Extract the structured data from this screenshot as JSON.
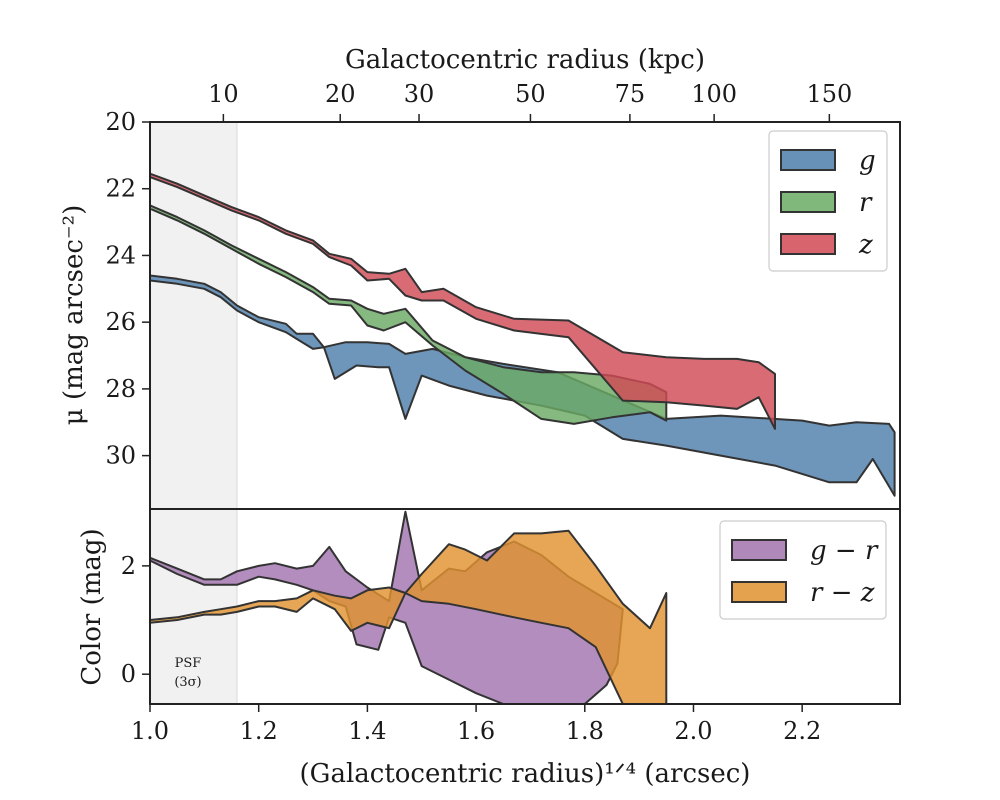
{
  "chart_data": [
    {
      "type": "area",
      "panel": "surface-brightness",
      "top_axis": {
        "label": "Galactocentric radius (kpc)",
        "ticks": [
          {
            "kpc": 10,
            "label": "10"
          },
          {
            "kpc": 20,
            "label": "20"
          },
          {
            "kpc": 30,
            "label": "30"
          },
          {
            "kpc": 50,
            "label": "50"
          },
          {
            "kpc": 75,
            "label": "75"
          },
          {
            "kpc": 100,
            "label": "100"
          },
          {
            "kpc": 150,
            "label": "150"
          }
        ]
      },
      "ylabel": "μ (mag arcsec⁻²)",
      "ylim": [
        31.6,
        20.0
      ],
      "y_inverted": true,
      "xlim": [
        1.0,
        2.38
      ],
      "yticks": [
        "20",
        "22",
        "24",
        "26",
        "28",
        "30"
      ],
      "legend": {
        "position": "top-right"
      },
      "psf_shade": {
        "x_max": 1.16
      },
      "series": [
        {
          "name": "g",
          "color": "#4e7eab",
          "upper": [
            [
              1.0,
              24.6
            ],
            [
              1.05,
              24.7
            ],
            [
              1.1,
              24.85
            ],
            [
              1.13,
              25.1
            ],
            [
              1.16,
              25.5
            ],
            [
              1.2,
              25.85
            ],
            [
              1.25,
              26.05
            ],
            [
              1.27,
              26.35
            ],
            [
              1.3,
              26.35
            ],
            [
              1.32,
              26.75
            ],
            [
              1.36,
              26.6
            ],
            [
              1.4,
              26.6
            ],
            [
              1.44,
              26.65
            ],
            [
              1.47,
              26.95
            ],
            [
              1.52,
              26.8
            ],
            [
              1.58,
              27.05
            ],
            [
              1.65,
              27.25
            ],
            [
              1.75,
              27.5
            ],
            [
              1.85,
              28.2
            ],
            [
              1.95,
              28.9
            ],
            [
              2.05,
              28.8
            ],
            [
              2.2,
              28.95
            ],
            [
              2.25,
              29.1
            ],
            [
              2.3,
              29.0
            ],
            [
              2.36,
              29.05
            ],
            [
              2.37,
              29.3
            ]
          ],
          "lower": [
            [
              1.0,
              24.75
            ],
            [
              1.05,
              24.85
            ],
            [
              1.1,
              25.0
            ],
            [
              1.13,
              25.25
            ],
            [
              1.16,
              25.65
            ],
            [
              1.2,
              26.0
            ],
            [
              1.25,
              26.3
            ],
            [
              1.27,
              26.5
            ],
            [
              1.3,
              26.8
            ],
            [
              1.32,
              26.75
            ],
            [
              1.34,
              27.7
            ],
            [
              1.38,
              27.3
            ],
            [
              1.42,
              27.35
            ],
            [
              1.44,
              27.35
            ],
            [
              1.47,
              28.9
            ],
            [
              1.5,
              27.6
            ],
            [
              1.55,
              27.9
            ],
            [
              1.62,
              28.2
            ],
            [
              1.72,
              28.5
            ],
            [
              1.8,
              28.8
            ],
            [
              1.87,
              29.5
            ],
            [
              1.95,
              29.7
            ],
            [
              2.05,
              30.0
            ],
            [
              2.15,
              30.3
            ],
            [
              2.25,
              30.8
            ],
            [
              2.3,
              30.8
            ],
            [
              2.33,
              30.1
            ],
            [
              2.37,
              31.2
            ]
          ]
        },
        {
          "name": "r",
          "color": "#6aaa64",
          "upper": [
            [
              1.0,
              22.5
            ],
            [
              1.05,
              22.85
            ],
            [
              1.1,
              23.25
            ],
            [
              1.15,
              23.7
            ],
            [
              1.2,
              24.1
            ],
            [
              1.25,
              24.5
            ],
            [
              1.3,
              24.95
            ],
            [
              1.33,
              25.3
            ],
            [
              1.37,
              25.35
            ],
            [
              1.4,
              25.6
            ],
            [
              1.43,
              25.75
            ],
            [
              1.47,
              25.6
            ],
            [
              1.52,
              26.55
            ],
            [
              1.58,
              27.05
            ],
            [
              1.65,
              27.35
            ],
            [
              1.72,
              27.5
            ],
            [
              1.78,
              27.5
            ],
            [
              1.85,
              27.6
            ],
            [
              1.92,
              27.85
            ],
            [
              1.95,
              28.1
            ]
          ],
          "lower": [
            [
              1.0,
              22.6
            ],
            [
              1.05,
              22.95
            ],
            [
              1.1,
              23.35
            ],
            [
              1.15,
              23.8
            ],
            [
              1.2,
              24.25
            ],
            [
              1.25,
              24.65
            ],
            [
              1.3,
              25.1
            ],
            [
              1.33,
              25.45
            ],
            [
              1.37,
              25.5
            ],
            [
              1.4,
              26.1
            ],
            [
              1.43,
              26.25
            ],
            [
              1.47,
              26.0
            ],
            [
              1.52,
              26.7
            ],
            [
              1.58,
              27.45
            ],
            [
              1.65,
              28.15
            ],
            [
              1.72,
              28.9
            ],
            [
              1.78,
              29.05
            ],
            [
              1.85,
              28.85
            ],
            [
              1.92,
              28.7
            ],
            [
              1.95,
              28.95
            ]
          ]
        },
        {
          "name": "z",
          "color": "#d14a55",
          "upper": [
            [
              1.0,
              21.55
            ],
            [
              1.05,
              21.85
            ],
            [
              1.1,
              22.2
            ],
            [
              1.15,
              22.55
            ],
            [
              1.2,
              22.85
            ],
            [
              1.25,
              23.25
            ],
            [
              1.3,
              23.55
            ],
            [
              1.33,
              23.95
            ],
            [
              1.37,
              24.1
            ],
            [
              1.4,
              24.5
            ],
            [
              1.44,
              24.55
            ],
            [
              1.47,
              24.4
            ],
            [
              1.5,
              25.1
            ],
            [
              1.54,
              25.0
            ],
            [
              1.6,
              25.55
            ],
            [
              1.67,
              25.9
            ],
            [
              1.77,
              25.95
            ],
            [
              1.87,
              26.9
            ],
            [
              1.95,
              27.05
            ],
            [
              2.02,
              27.1
            ],
            [
              2.08,
              27.1
            ],
            [
              2.12,
              27.2
            ],
            [
              2.15,
              27.55
            ]
          ],
          "lower": [
            [
              1.0,
              21.65
            ],
            [
              1.05,
              21.95
            ],
            [
              1.1,
              22.3
            ],
            [
              1.15,
              22.65
            ],
            [
              1.2,
              22.95
            ],
            [
              1.25,
              23.35
            ],
            [
              1.3,
              23.65
            ],
            [
              1.33,
              24.05
            ],
            [
              1.37,
              24.3
            ],
            [
              1.4,
              24.75
            ],
            [
              1.44,
              24.7
            ],
            [
              1.47,
              25.2
            ],
            [
              1.5,
              25.35
            ],
            [
              1.54,
              25.35
            ],
            [
              1.6,
              25.9
            ],
            [
              1.67,
              26.25
            ],
            [
              1.77,
              26.45
            ],
            [
              1.87,
              28.35
            ],
            [
              1.95,
              28.4
            ],
            [
              2.02,
              28.5
            ],
            [
              2.08,
              28.6
            ],
            [
              2.12,
              28.25
            ],
            [
              2.15,
              29.2
            ]
          ]
        }
      ]
    },
    {
      "type": "area",
      "panel": "color",
      "ylabel": "Color (mag)",
      "xlabel": "(Galactocentric radius)¹ᐟ⁴ (arcsec)",
      "xlim": [
        1.0,
        2.38
      ],
      "ylim": [
        -0.55,
        3.05
      ],
      "xticks": [
        "1.0",
        "1.2",
        "1.4",
        "1.6",
        "1.8",
        "2.0",
        "2.2"
      ],
      "yticks": [
        "0",
        "2"
      ],
      "psf_label": [
        "PSF",
        "(3σ)"
      ],
      "legend": {
        "position": "top-right"
      },
      "series": [
        {
          "name": "g − r",
          "color": "#a274ae",
          "upper": [
            [
              1.0,
              2.15
            ],
            [
              1.05,
              1.95
            ],
            [
              1.1,
              1.75
            ],
            [
              1.13,
              1.75
            ],
            [
              1.16,
              1.9
            ],
            [
              1.2,
              2.0
            ],
            [
              1.23,
              2.05
            ],
            [
              1.27,
              1.95
            ],
            [
              1.3,
              2.0
            ],
            [
              1.33,
              2.35
            ],
            [
              1.36,
              1.9
            ],
            [
              1.4,
              1.6
            ],
            [
              1.44,
              1.35
            ],
            [
              1.47,
              3.0
            ],
            [
              1.5,
              1.55
            ],
            [
              1.55,
              1.95
            ],
            [
              1.58,
              1.9
            ],
            [
              1.62,
              2.25
            ],
            [
              1.67,
              2.45
            ],
            [
              1.72,
              2.2
            ],
            [
              1.77,
              1.8
            ],
            [
              1.82,
              1.5
            ],
            [
              1.87,
              1.2
            ]
          ],
          "lower": [
            [
              1.0,
              2.1
            ],
            [
              1.05,
              1.85
            ],
            [
              1.1,
              1.65
            ],
            [
              1.13,
              1.65
            ],
            [
              1.16,
              1.65
            ],
            [
              1.2,
              1.8
            ],
            [
              1.23,
              1.75
            ],
            [
              1.27,
              1.65
            ],
            [
              1.3,
              1.55
            ],
            [
              1.33,
              1.35
            ],
            [
              1.36,
              1.25
            ],
            [
              1.38,
              0.55
            ],
            [
              1.42,
              0.45
            ],
            [
              1.44,
              1.05
            ],
            [
              1.47,
              0.95
            ],
            [
              1.5,
              0.15
            ],
            [
              1.55,
              -0.1
            ],
            [
              1.6,
              -0.35
            ],
            [
              1.65,
              -0.55
            ],
            [
              1.7,
              -0.55
            ],
            [
              1.8,
              -0.55
            ],
            [
              1.84,
              -0.2
            ],
            [
              1.86,
              0.2
            ]
          ]
        },
        {
          "name": "r − z",
          "color": "#e0922f",
          "upper": [
            [
              1.0,
              1.0
            ],
            [
              1.05,
              1.05
            ],
            [
              1.1,
              1.15
            ],
            [
              1.13,
              1.2
            ],
            [
              1.16,
              1.25
            ],
            [
              1.2,
              1.35
            ],
            [
              1.23,
              1.35
            ],
            [
              1.27,
              1.4
            ],
            [
              1.3,
              1.55
            ],
            [
              1.34,
              1.45
            ],
            [
              1.37,
              1.4
            ],
            [
              1.4,
              1.55
            ],
            [
              1.44,
              1.6
            ],
            [
              1.47,
              1.5
            ],
            [
              1.5,
              1.85
            ],
            [
              1.55,
              2.4
            ],
            [
              1.58,
              2.3
            ],
            [
              1.62,
              2.1
            ],
            [
              1.67,
              2.6
            ],
            [
              1.72,
              2.6
            ],
            [
              1.77,
              2.65
            ],
            [
              1.82,
              2.0
            ],
            [
              1.87,
              1.3
            ],
            [
              1.92,
              0.85
            ],
            [
              1.95,
              1.5
            ]
          ],
          "lower": [
            [
              1.0,
              0.95
            ],
            [
              1.05,
              1.0
            ],
            [
              1.1,
              1.1
            ],
            [
              1.13,
              1.1
            ],
            [
              1.16,
              1.15
            ],
            [
              1.2,
              1.25
            ],
            [
              1.23,
              1.25
            ],
            [
              1.27,
              1.15
            ],
            [
              1.3,
              1.4
            ],
            [
              1.34,
              1.2
            ],
            [
              1.37,
              0.8
            ],
            [
              1.4,
              0.95
            ],
            [
              1.44,
              0.85
            ],
            [
              1.47,
              1.5
            ],
            [
              1.5,
              1.35
            ],
            [
              1.55,
              1.3
            ],
            [
              1.6,
              1.2
            ],
            [
              1.67,
              1.05
            ],
            [
              1.72,
              0.95
            ],
            [
              1.77,
              0.85
            ],
            [
              1.82,
              0.5
            ],
            [
              1.87,
              -0.55
            ],
            [
              1.95,
              -0.55
            ]
          ]
        }
      ]
    }
  ]
}
